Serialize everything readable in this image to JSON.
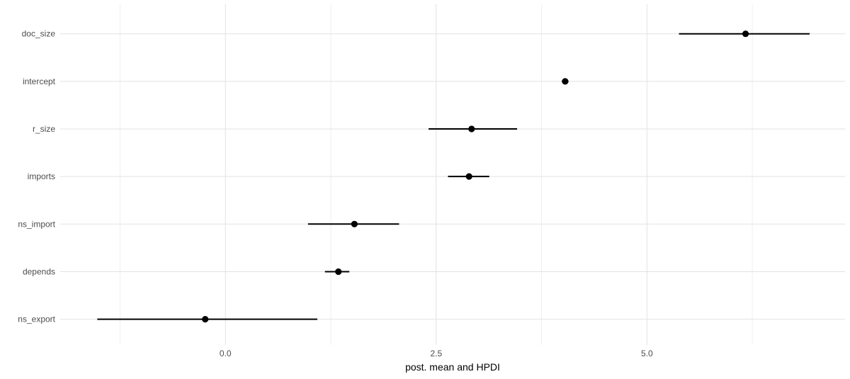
{
  "chart_data": {
    "type": "scatter",
    "subtype": "pointrange-forest",
    "title": "",
    "xlabel": "post. mean and HPDI",
    "ylabel": "",
    "categories": [
      "doc_size",
      "intercept",
      "r_size",
      "imports",
      "ns_import",
      "depends",
      "ns_export"
    ],
    "points": [
      {
        "label": "doc_size",
        "mean": 6.17,
        "hpdi_lower": 5.38,
        "hpdi_upper": 6.93
      },
      {
        "label": "intercept",
        "mean": 4.03,
        "hpdi_lower": 3.99,
        "hpdi_upper": 4.07
      },
      {
        "label": "r_size",
        "mean": 2.92,
        "hpdi_lower": 2.41,
        "hpdi_upper": 3.46
      },
      {
        "label": "imports",
        "mean": 2.89,
        "hpdi_lower": 2.64,
        "hpdi_upper": 3.13
      },
      {
        "label": "ns_import",
        "mean": 1.53,
        "hpdi_lower": 0.98,
        "hpdi_upper": 2.06
      },
      {
        "label": "depends",
        "mean": 1.34,
        "hpdi_lower": 1.18,
        "hpdi_upper": 1.47
      },
      {
        "label": "ns_export",
        "mean": -0.24,
        "hpdi_lower": -1.52,
        "hpdi_upper": 1.09
      }
    ],
    "x_axis": {
      "ticks": [
        0.0,
        2.5,
        5.0
      ],
      "tick_labels": [
        "0.0",
        "2.5",
        "5.0"
      ],
      "minor_ticks": [
        -1.25,
        1.25,
        3.75,
        6.25
      ],
      "range": [
        -1.96,
        7.35
      ]
    },
    "grid": true,
    "legend": false
  },
  "colors": {
    "background": "#FFFFFF",
    "point": "#000000",
    "interval_line": "#000000",
    "grid_major": "#E2E2E2",
    "grid_minor": "#EFEFEF",
    "axis_text": "#4D4D4D",
    "axis_title": "#000000"
  }
}
